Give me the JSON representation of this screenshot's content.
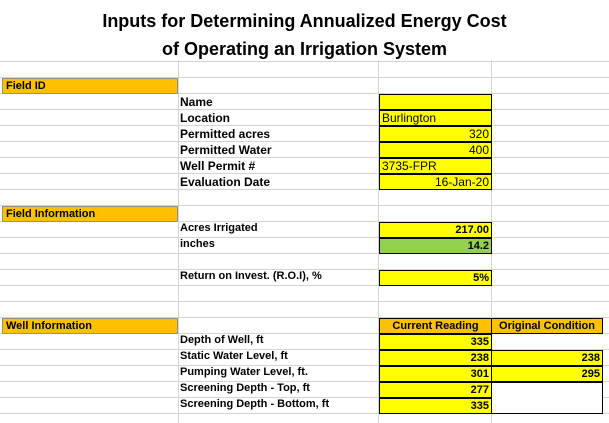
{
  "title": {
    "line1": "Inputs for Determining Annualized Energy Cost",
    "line2": "of Operating an Irrigation System"
  },
  "sections": {
    "field_id": "Field ID",
    "field_information": "Field Information",
    "well_information": "Well Information"
  },
  "field_id": {
    "name_label": "Name",
    "name_value": "",
    "location_label": "Location",
    "location_value": "Burlington",
    "permitted_acres_label": "Permitted acres",
    "permitted_acres_value": "320",
    "permitted_water_label": "Permitted Water",
    "permitted_water_value": "400",
    "well_permit_label": "Well Permit #",
    "well_permit_value": "3735-FPR",
    "evaluation_date_label": "Evaluation Date",
    "evaluation_date_value": "16-Jan-20"
  },
  "field_information": {
    "acres_irrigated_label": "Acres Irrigated",
    "acres_irrigated_value": "217.00",
    "inches_label": "inches",
    "inches_value": "14.2",
    "roi_label": "Return on Invest. (R.O.I), %",
    "roi_value": "5%"
  },
  "well_information": {
    "col_current": "Current Reading",
    "col_original": "Original Condition",
    "rows": [
      {
        "label": "Depth of Well, ft",
        "current": "335",
        "original": ""
      },
      {
        "label": "Static Water Level, ft",
        "current": "238",
        "original": "238"
      },
      {
        "label": "Pumping Water Level, ft.",
        "current": "301",
        "original": "295"
      },
      {
        "label": "Screening Depth - Top, ft",
        "current": "277",
        "original": ""
      },
      {
        "label": "Screening Depth - Bottom, ft",
        "current": "335",
        "original": ""
      }
    ]
  },
  "colors": {
    "input_yellow": "#FFFF00",
    "computed_green": "#92D050",
    "header_orange": "#FFC000",
    "gridline": "#D4D4D4"
  }
}
